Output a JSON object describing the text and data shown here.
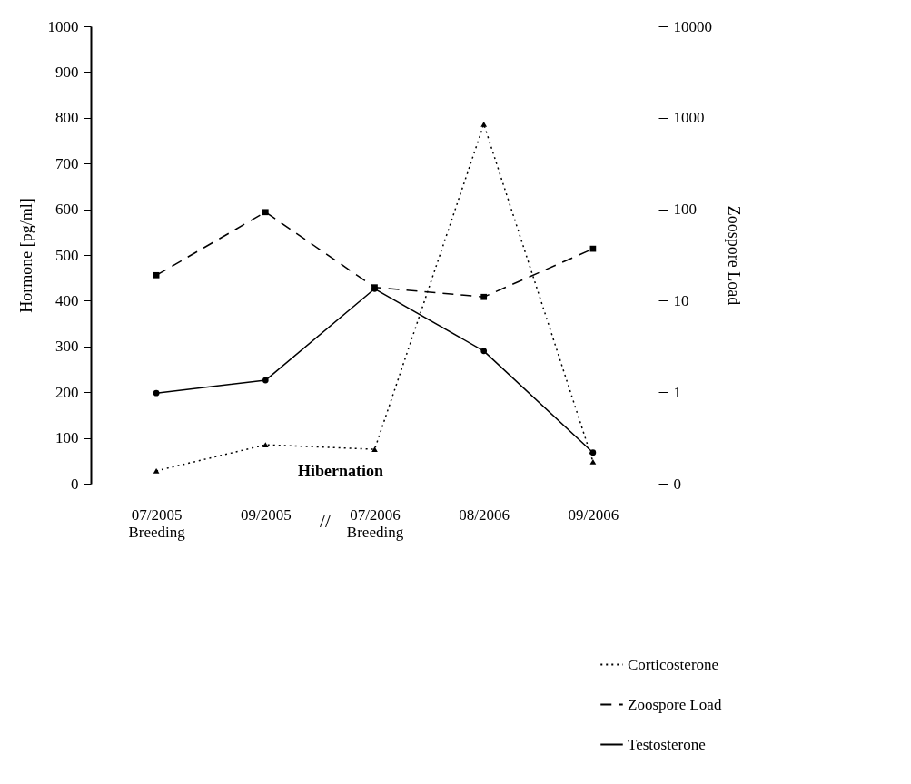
{
  "chart_data": {
    "type": "line",
    "categories": [
      "07/2005\nBreeding",
      "09/2005",
      "07/2006\nBreeding",
      "08/2006",
      "09/2006"
    ],
    "ylabel": "Hormone [pg/ml]",
    "y2label": "Zoospore Load",
    "ylim": [
      0,
      1000
    ],
    "yticks": [
      0,
      100,
      200,
      300,
      400,
      500,
      600,
      700,
      800,
      900,
      1000
    ],
    "y2lim": [
      0.1,
      10000
    ],
    "y2ticks": [
      {
        "value": 0.1,
        "label": "0"
      },
      1,
      10,
      100,
      1000,
      10000
    ],
    "log": "y2",
    "series": [
      {
        "name": "Corticosterone",
        "color": "#000000",
        "values": [
          28,
          85,
          75,
          786,
          48
        ],
        "line_style": "dotted",
        "marker": "triangle"
      },
      {
        "name": "Zoospore Load",
        "color": "#000000",
        "values": [
          19,
          93,
          14,
          11,
          37
        ],
        "axis": "y2",
        "line_style": "dashed",
        "marker": "square"
      },
      {
        "name": "Testosterone",
        "color": "#000000",
        "values": [
          198,
          226,
          426,
          290,
          68
        ],
        "line_style": "solid",
        "marker": "circle"
      }
    ],
    "annotations": [
      "Hibernation",
      "//"
    ],
    "legend": "bottom right",
    "grid": false
  }
}
